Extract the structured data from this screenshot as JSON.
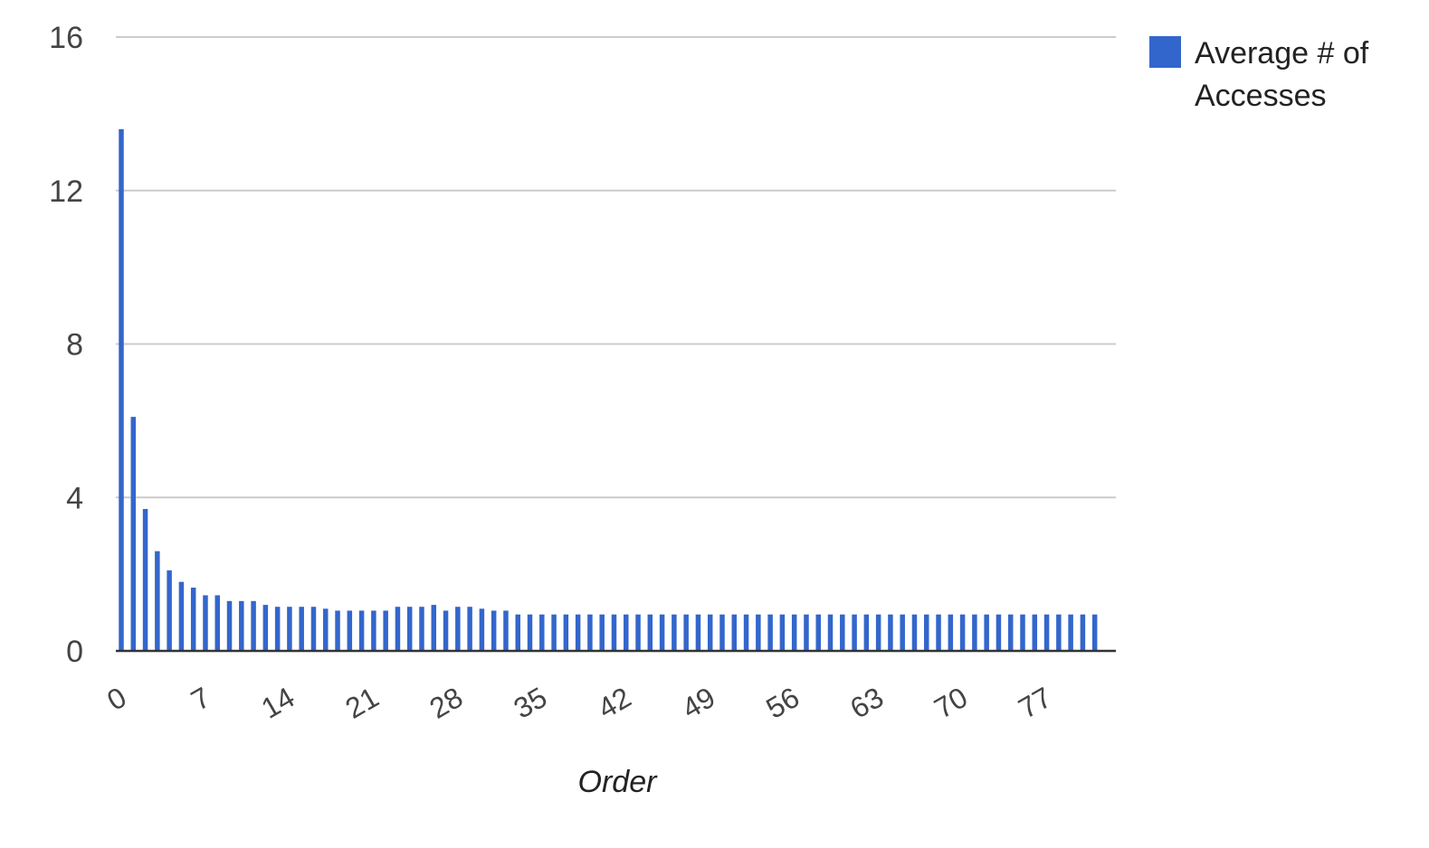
{
  "chart_data": {
    "type": "bar",
    "title": "",
    "xlabel": "Order",
    "ylabel": "",
    "ylim": [
      0,
      16
    ],
    "yticks": [
      0,
      4,
      8,
      12,
      16
    ],
    "xticks": [
      0,
      7,
      14,
      21,
      28,
      35,
      42,
      49,
      56,
      63,
      70,
      77
    ],
    "grid": true,
    "legend_position": "right",
    "legend": {
      "line1": "Average # of",
      "line2": "Accesses"
    },
    "series": [
      {
        "name": "Average # of Accesses",
        "color": "#3366cc",
        "x": [
          0,
          1,
          2,
          3,
          4,
          5,
          6,
          7,
          8,
          9,
          10,
          11,
          12,
          13,
          14,
          15,
          16,
          17,
          18,
          19,
          20,
          21,
          22,
          23,
          24,
          25,
          26,
          27,
          28,
          29,
          30,
          31,
          32,
          33,
          34,
          35,
          36,
          37,
          38,
          39,
          40,
          41,
          42,
          43,
          44,
          45,
          46,
          47,
          48,
          49,
          50,
          51,
          52,
          53,
          54,
          55,
          56,
          57,
          58,
          59,
          60,
          61,
          62,
          63,
          64,
          65,
          66,
          67,
          68,
          69,
          70,
          71,
          72,
          73,
          74,
          75,
          76,
          77,
          78,
          79,
          80,
          81
        ],
        "values": [
          13.6,
          6.1,
          3.7,
          2.6,
          2.1,
          1.8,
          1.65,
          1.45,
          1.45,
          1.3,
          1.3,
          1.3,
          1.2,
          1.15,
          1.15,
          1.15,
          1.15,
          1.1,
          1.05,
          1.05,
          1.05,
          1.05,
          1.05,
          1.15,
          1.15,
          1.15,
          1.2,
          1.05,
          1.15,
          1.15,
          1.1,
          1.05,
          1.05,
          0.95,
          0.95,
          0.95,
          0.95,
          0.95,
          0.95,
          0.95,
          0.95,
          0.95,
          0.95,
          0.95,
          0.95,
          0.95,
          0.95,
          0.95,
          0.95,
          0.95,
          0.95,
          0.95,
          0.95,
          0.95,
          0.95,
          0.95,
          0.95,
          0.95,
          0.95,
          0.95,
          0.95,
          0.95,
          0.95,
          0.95,
          0.95,
          0.95,
          0.95,
          0.95,
          0.95,
          0.95,
          0.95,
          0.95,
          0.95,
          0.95,
          0.95,
          0.95,
          0.95,
          0.95,
          0.95,
          0.95,
          0.95,
          0.95
        ]
      }
    ]
  }
}
